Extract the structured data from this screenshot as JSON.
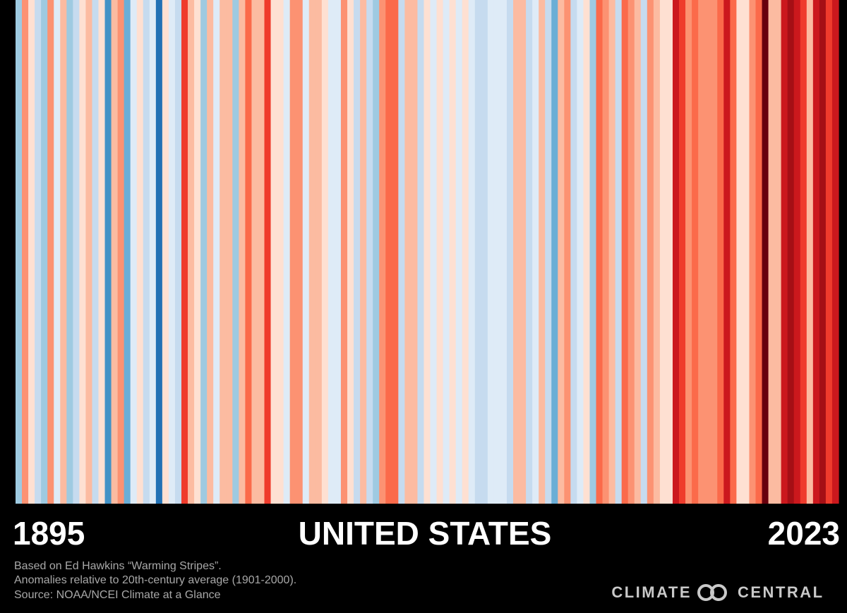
{
  "chart_data": {
    "type": "stripes",
    "title": "UNITED STATES",
    "start_label": "1895",
    "end_label": "2023",
    "notes": [
      "Based on Ed Hawkins “Warming Stripes”.",
      "Anomalies relative to 20th-century average (1901-2000).",
      "Source: NOAA/NCEI Climate at a Glance"
    ],
    "logo_left": "CLIMATE",
    "logo_right": "CENTRAL",
    "vlim": [
      -3,
      3
    ],
    "colors": [
      "#08306b",
      "#08519c",
      "#2171b5",
      "#4292c6",
      "#6baed6",
      "#9ecae1",
      "#c6dbef",
      "#deebf7",
      "#fee0d2",
      "#fcbba1",
      "#fc9272",
      "#fb6a4a",
      "#ef3b2c",
      "#cb181d",
      "#a50f15",
      "#67000d"
    ],
    "values": [
      -0.8,
      0.9,
      0.2,
      -0.5,
      -0.9,
      1.0,
      -0.3,
      0.5,
      -1.0,
      -0.6,
      0.3,
      0.6,
      -0.4,
      0.2,
      -1.8,
      0.4,
      0.8,
      -1.2,
      -0.2,
      0.1,
      -0.6,
      -0.2,
      -2.0,
      0.1,
      -0.1,
      -0.7,
      1.5,
      0.6,
      0.3,
      -1.1,
      0.7,
      -0.3,
      0.5,
      0.4,
      -0.9,
      0.6,
      1.2,
      0.4,
      0.6,
      1.7,
      0.2,
      0.1,
      -0.2,
      1.1,
      1.0,
      -0.3,
      0.7,
      0.4,
      0.3,
      -0.1,
      -0.3,
      1.1,
      0.2,
      -0.4,
      0.5,
      -0.5,
      -0.8,
      0.8,
      1.3,
      1.3,
      -0.4,
      0.4,
      0.5,
      -0.6,
      0.3,
      -0.3,
      0.2,
      -0.2,
      0.3,
      -0.1,
      0.0,
      -0.1,
      -0.4,
      -0.5,
      -0.3,
      -0.1,
      -0.2,
      -0.4,
      0.4,
      0.4,
      -0.5,
      -0.3,
      0.6,
      -0.7,
      -1.3,
      0.5,
      1.0,
      -0.5,
      -0.2,
      0.3,
      -0.9,
      1.3,
      1.1,
      0.4,
      -0.6,
      1.3,
      1.1,
      0.4,
      -0.6,
      0.9,
      0.7,
      0.0,
      0.2,
      2.0,
      1.6,
      0.8,
      1.2,
      0.8,
      0.9,
      0.8,
      1.3,
      2.0,
      1.4,
      0.3,
      0.3,
      0.9,
      1.3,
      3.2,
      0.5,
      0.6,
      2.0,
      2.3,
      1.9,
      1.5,
      0.6,
      2.1,
      2.5,
      1.5,
      2.2
    ]
  }
}
